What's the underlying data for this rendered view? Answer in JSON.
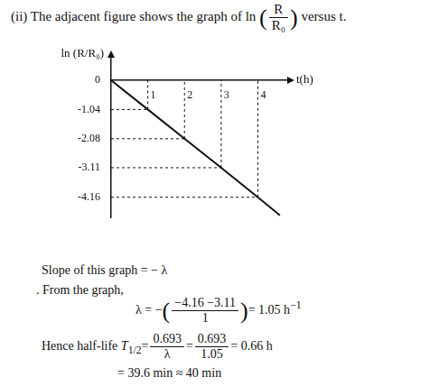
{
  "heading": {
    "before": "(ii) The adjacent figure shows the graph of ln",
    "open": "(",
    "num": "R",
    "den": "R₀",
    "close": ")",
    "after": "versus t."
  },
  "chart_data": {
    "type": "line",
    "y_label": "ln (R/R₀)",
    "x_label": "t(h)",
    "x": [
      0,
      1,
      2,
      3,
      4,
      4.6
    ],
    "values": [
      0,
      -1.04,
      -2.08,
      -3.11,
      -4.16,
      -4.8
    ],
    "color": "#111111",
    "xlim": [
      0,
      4.8
    ],
    "xticks": [
      1,
      2,
      3,
      4
    ],
    "ylim": [
      -4.9,
      0.8
    ],
    "yticks": [
      0,
      -1.04,
      -2.08,
      -3.11,
      -4.16
    ],
    "grid": false,
    "marker": "none",
    "line_style": "solid"
  },
  "slope_line": "Slope of this graph = − λ",
  "from_graph": ". From the graph,",
  "equation_lambda": {
    "lhs": "λ = −",
    "open": "(",
    "num": "−4.16 −3.11",
    "den": "1",
    "close": ")",
    "rhs": "= 1.05 h",
    "sup": "−1"
  },
  "half_life": {
    "lead": "Hence half-life",
    "symbol": "T",
    "sub": "1/2",
    "eq": "=",
    "frac1": [
      "0.693",
      "λ"
    ],
    "eq2": "=",
    "frac2": [
      "0.693",
      "1.05"
    ],
    "result": "= 0.66 h",
    "line2": "= 39.6 min ≈ 40 min"
  }
}
